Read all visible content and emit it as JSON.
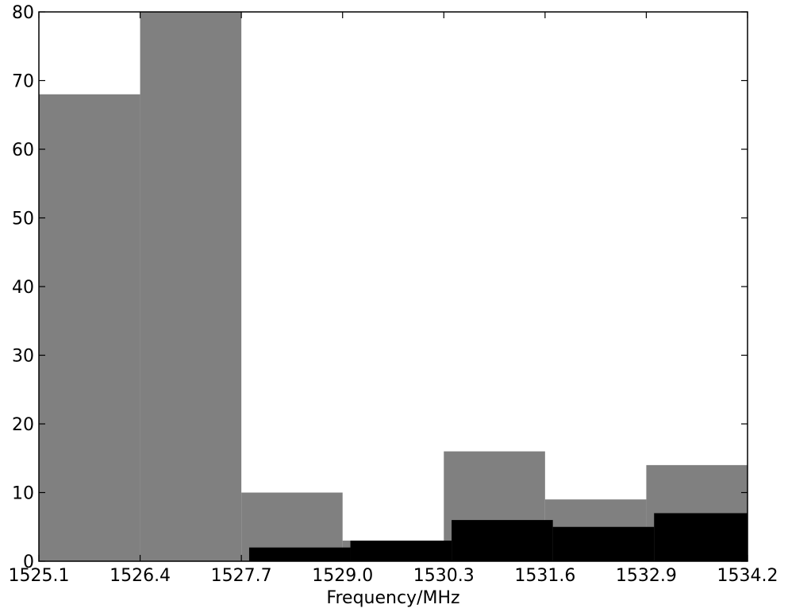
{
  "chart_data": {
    "type": "bar",
    "title": "",
    "xlabel": "Frequency/MHz",
    "ylabel": "",
    "xlim": [
      1525.1,
      1534.2
    ],
    "ylim": [
      0,
      80
    ],
    "x_ticks": [
      "1525.1",
      "1526.4",
      "1527.7",
      "1529.0",
      "1530.3",
      "1531.6",
      "1532.9",
      "1534.2"
    ],
    "y_ticks": [
      "0",
      "10",
      "20",
      "30",
      "40",
      "50",
      "60",
      "70",
      "80"
    ],
    "grid": false,
    "legend": "none",
    "series": [
      {
        "color": "#808080",
        "bins": [
          {
            "x0": 1525.1,
            "x1": 1526.4,
            "value": 68
          },
          {
            "x0": 1526.4,
            "x1": 1527.7,
            "value": 80
          },
          {
            "x0": 1527.7,
            "x1": 1529.0,
            "value": 10
          },
          {
            "x0": 1529.0,
            "x1": 1530.3,
            "value": 3
          },
          {
            "x0": 1530.3,
            "x1": 1531.6,
            "value": 16
          },
          {
            "x0": 1531.6,
            "x1": 1532.9,
            "value": 9
          },
          {
            "x0": 1532.9,
            "x1": 1534.2,
            "value": 14
          }
        ]
      },
      {
        "color": "#000000",
        "bins": [
          {
            "x0": 1527.8,
            "x1": 1529.1,
            "value": 2
          },
          {
            "x0": 1529.1,
            "x1": 1530.4,
            "value": 3
          },
          {
            "x0": 1530.4,
            "x1": 1531.7,
            "value": 6
          },
          {
            "x0": 1531.7,
            "x1": 1533.0,
            "value": 5
          },
          {
            "x0": 1533.0,
            "x1": 1534.2,
            "value": 7
          }
        ]
      }
    ]
  }
}
